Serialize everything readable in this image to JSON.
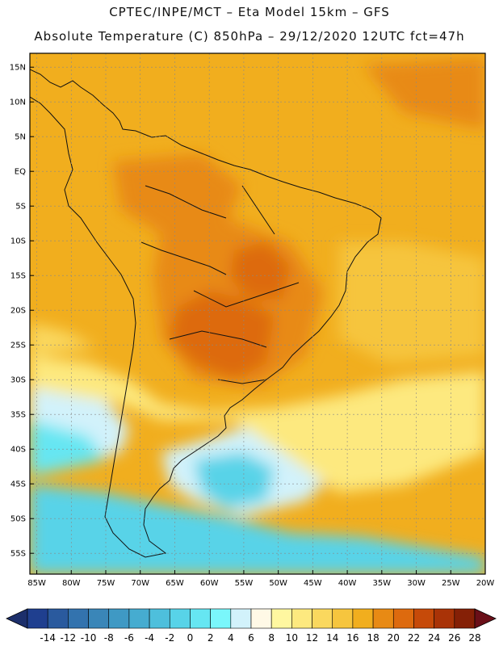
{
  "header": {
    "line1": "CPTEC/INPE/MCT –   Eta Model 15km – GFS",
    "line2": "Absolute Temperature (C) 850hPa – 29/12/2020 12UTC fct=47h"
  },
  "map": {
    "lon_range": [
      -86,
      -20
    ],
    "lat_range": [
      -58,
      17
    ],
    "lat_labels": [
      "15N",
      "10N",
      "5N",
      "EQ",
      "5S",
      "10S",
      "15S",
      "20S",
      "25S",
      "30S",
      "35S",
      "40S",
      "45S",
      "50S",
      "55S"
    ],
    "lat_values": [
      15,
      10,
      5,
      0,
      -5,
      -10,
      -15,
      -20,
      -25,
      -30,
      -35,
      -40,
      -45,
      -50,
      -55
    ],
    "lon_labels": [
      "85W",
      "80W",
      "75W",
      "70W",
      "65W",
      "60W",
      "55W",
      "50W",
      "45W",
      "40W",
      "35W",
      "30W",
      "25W",
      "20W"
    ],
    "lon_values": [
      -85,
      -80,
      -75,
      -70,
      -65,
      -60,
      -55,
      -50,
      -45,
      -40,
      -35,
      -30,
      -25,
      -20
    ]
  },
  "colorbar": {
    "labels": [
      "-14",
      "-12",
      "-10",
      "-8",
      "-6",
      "-4",
      "-2",
      "0",
      "2",
      "4",
      "6",
      "8",
      "10",
      "12",
      "14",
      "16",
      "18",
      "20",
      "22",
      "24",
      "26",
      "28"
    ],
    "colors": [
      "#1f3f8f",
      "#2a5a9e",
      "#3373ae",
      "#3a86b8",
      "#3f99c4",
      "#46acd0",
      "#4ebfdc",
      "#58d3e8",
      "#66e6f2",
      "#7af7fb",
      "#d2f2fb",
      "#fff9e6",
      "#fff7a0",
      "#fde97f",
      "#fad85e",
      "#f6c53e",
      "#f1ae1e",
      "#e88a14",
      "#dd6a0e",
      "#c64a09",
      "#a93307",
      "#852006"
    ],
    "left_arrow_color": "#1c2f6b",
    "right_arrow_color": "#6a0f18"
  }
}
